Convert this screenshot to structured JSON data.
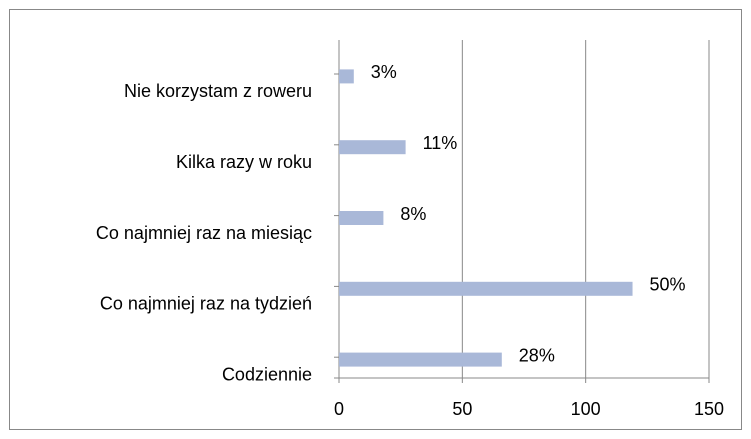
{
  "chart_data": {
    "type": "barh",
    "categories": [
      "Nie korzystam z roweru",
      "Kilka razy w roku",
      "Co najmniej raz na miesiąc",
      "Co najmniej raz na tydzień",
      "Codziennie"
    ],
    "values": [
      6,
      27,
      18,
      119,
      66
    ],
    "value_labels": [
      "3%",
      "11%",
      "8%",
      "50%",
      "28%"
    ],
    "color": "#a9b8d8",
    "xlim": [
      0,
      150
    ],
    "xticks": [
      0,
      50,
      100,
      150
    ],
    "grid": true
  }
}
